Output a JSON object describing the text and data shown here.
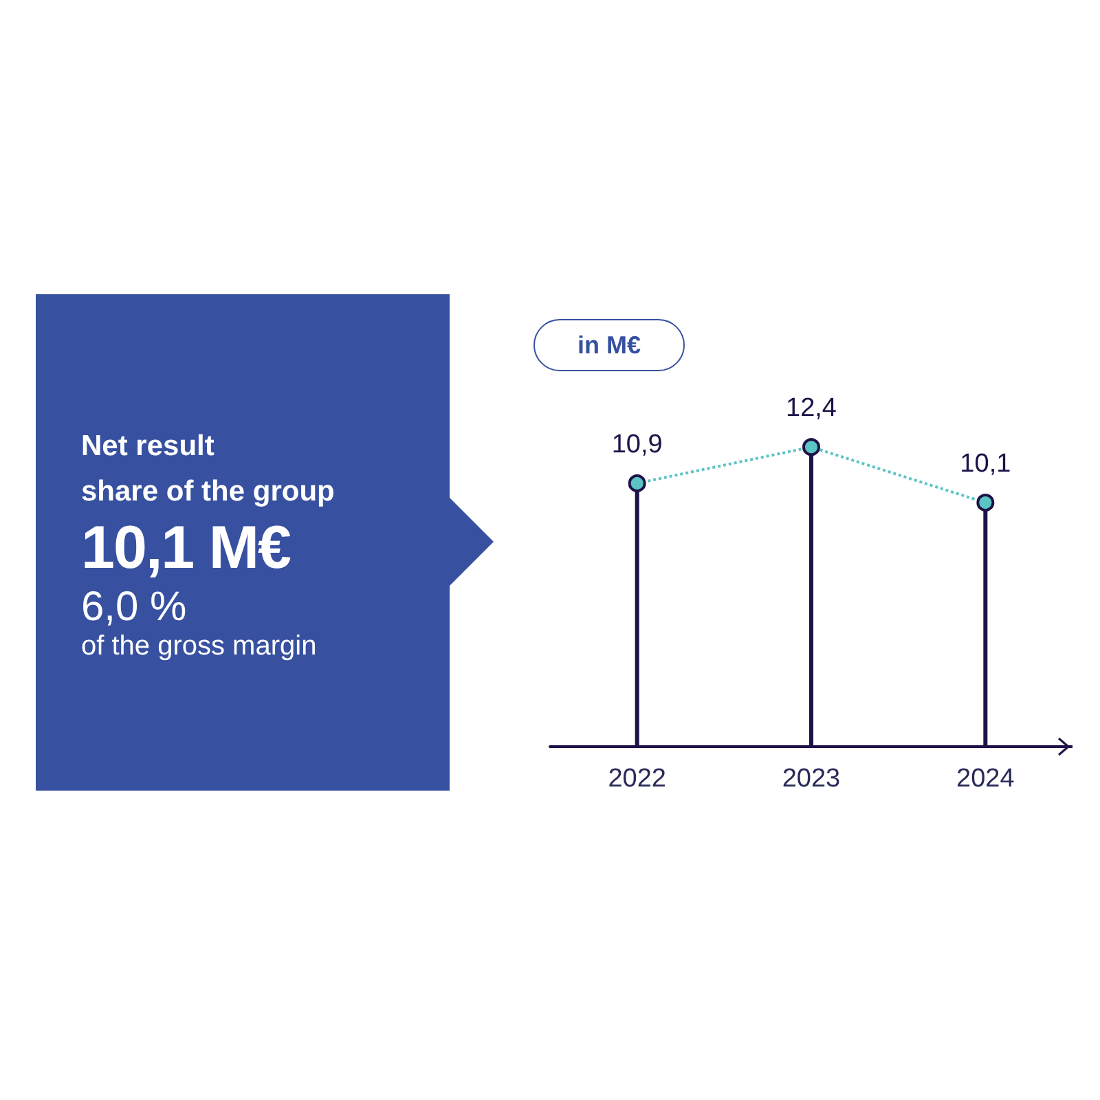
{
  "chart_data": [
    {
      "type": "other",
      "title": "Net result\nshare of the group",
      "annotations": [
        "10,1 M€",
        "6,0 %",
        "of the gross margin"
      ],
      "color": "#3750a0"
    },
    {
      "type": "lollipop",
      "ylabel": "in M€",
      "categories": [
        "2022",
        "2023",
        "2024"
      ],
      "series": [
        {
          "type": "lollipop",
          "color": "#1e1248",
          "colors": [
            "#5bc4c4",
            "#5bc4c4",
            "#5bc4c4"
          ],
          "marker": "circle",
          "values": [
            10.9,
            12.4,
            10.1
          ],
          "value_labels": [
            "10,9",
            "12,4",
            "10,1"
          ]
        },
        {
          "type": "line",
          "color": "#5bc4c4",
          "values": [
            10.9,
            12.4,
            10.1
          ],
          "line_style": "dotted"
        }
      ]
    }
  ]
}
